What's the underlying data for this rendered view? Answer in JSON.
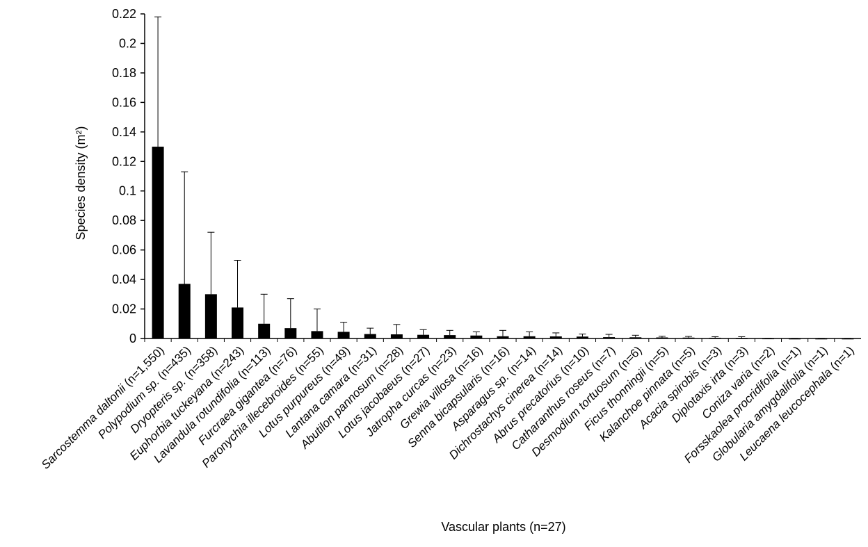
{
  "chart_data": {
    "type": "bar",
    "title": "",
    "xlabel": "Vascular plants (n=27)",
    "ylabel": "Species density (m²)",
    "ylim": [
      0,
      0.22
    ],
    "yticks": [
      "0",
      "0.02",
      "0.04",
      "0.06",
      "0.08",
      "0.1",
      "0.12",
      "0.14",
      "0.16",
      "0.18",
      "0.2",
      "0.22"
    ],
    "grid": false,
    "legend": "none",
    "bar_color": "#000000",
    "categories": [
      {
        "species": "Sarcostemma daltonii",
        "n": "(n=1,550)"
      },
      {
        "species": "Polypodium sp.",
        "n": "(n=435)"
      },
      {
        "species": "Dryopteris sp.",
        "n": "(n=358)"
      },
      {
        "species": "Euphorbia tuckeyana",
        "n": "(n=243)"
      },
      {
        "species": "Lavandula rotundifolia",
        "n": "(n=113)"
      },
      {
        "species": "Furcraea gigantea",
        "n": "(n=76)"
      },
      {
        "species": "Paronychia illecebroides",
        "n": "(n=55)"
      },
      {
        "species": "Lotus purpureus",
        "n": "(n=49)"
      },
      {
        "species": "Lantana camara",
        "n": "(n=31)"
      },
      {
        "species": "Abutilon pannosum",
        "n": "(n=28)"
      },
      {
        "species": "Lotus jacobaeus",
        "n": "(n=27)"
      },
      {
        "species": "Jatropha curcas",
        "n": "(n=23)"
      },
      {
        "species": "Grewia villosa",
        "n": "(n=16)"
      },
      {
        "species": "Senna bicapsularis",
        "n": "(n=16)"
      },
      {
        "species": "Asparagus sp.",
        "n": "(n=14)"
      },
      {
        "species": "Dichrostachys cinerea",
        "n": "(n=14)"
      },
      {
        "species": "Abrus precatorius",
        "n": "(n=10)"
      },
      {
        "species": "Catharanthus roseus",
        "n": "(n=7)"
      },
      {
        "species": "Desmodium tortuosum",
        "n": "(n=6)"
      },
      {
        "species": "Ficus thonningii",
        "n": "(n=5)"
      },
      {
        "species": "Kalanchoe pinnata",
        "n": "(n=5)"
      },
      {
        "species": "Acacia spirobis",
        "n": "(n=3)"
      },
      {
        "species": "Diplotaxis irta",
        "n": "(n=3)"
      },
      {
        "species": "Coniza varia",
        "n": "(n=2)"
      },
      {
        "species": "Forsskaolea procridifolia",
        "n": "(n=1)"
      },
      {
        "species": "Globularia amygdalifolia",
        "n": "(n=1)"
      },
      {
        "species": "Leucaena leucocephala",
        "n": "(n=1)"
      }
    ],
    "series": [
      {
        "values": [
          0.13,
          0.037,
          0.03,
          0.021,
          0.01,
          0.007,
          0.005,
          0.0045,
          0.003,
          0.0028,
          0.0025,
          0.0023,
          0.002,
          0.0015,
          0.0015,
          0.0014,
          0.0013,
          0.0009,
          0.0008,
          0.0007,
          0.0006,
          0.0005,
          0.0003,
          0.0002,
          0.0001,
          0.0001,
          0.0001
        ],
        "error_upper": [
          0.218,
          0.113,
          0.072,
          0.053,
          0.03,
          0.027,
          0.02,
          0.011,
          0.007,
          0.0095,
          0.006,
          0.0055,
          0.0045,
          0.0055,
          0.0045,
          0.0038,
          0.003,
          0.0028,
          0.0022,
          0.0015,
          0.0014,
          0.0012,
          0.0012,
          0.0001,
          0.0001,
          0.0001,
          0.0001
        ]
      }
    ]
  }
}
